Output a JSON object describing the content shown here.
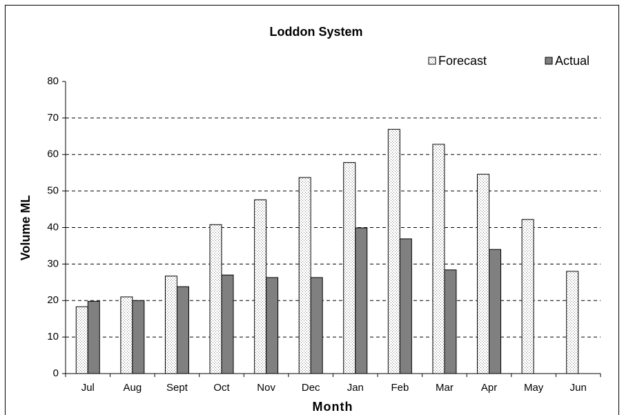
{
  "chart_data": {
    "type": "bar",
    "title": "Loddon System",
    "x_label": "Month",
    "y_label": "Volume ML",
    "categories": [
      "Jul",
      "Aug",
      "Sept",
      "Oct",
      "Nov",
      "Dec",
      "Jan",
      "Feb",
      "Mar",
      "Apr",
      "May",
      "Jun"
    ],
    "series": [
      {
        "name": "Forecast",
        "color": "#f0f0f0",
        "pattern": "dots",
        "values": [
          18.3,
          21,
          26.7,
          40.8,
          47.6,
          53.7,
          57.8,
          66.9,
          62.8,
          54.6,
          42.2,
          28
        ]
      },
      {
        "name": "Actual",
        "color": "#808080",
        "values": [
          19.8,
          20,
          23.8,
          27,
          26.3,
          26.3,
          39.9,
          36.9,
          28.4,
          34,
          null,
          null
        ]
      }
    ],
    "ylim": [
      0,
      80
    ],
    "yticks": [
      0,
      10,
      20,
      30,
      40,
      50,
      60,
      70,
      80
    ],
    "grid": true,
    "legend": "top-right"
  }
}
